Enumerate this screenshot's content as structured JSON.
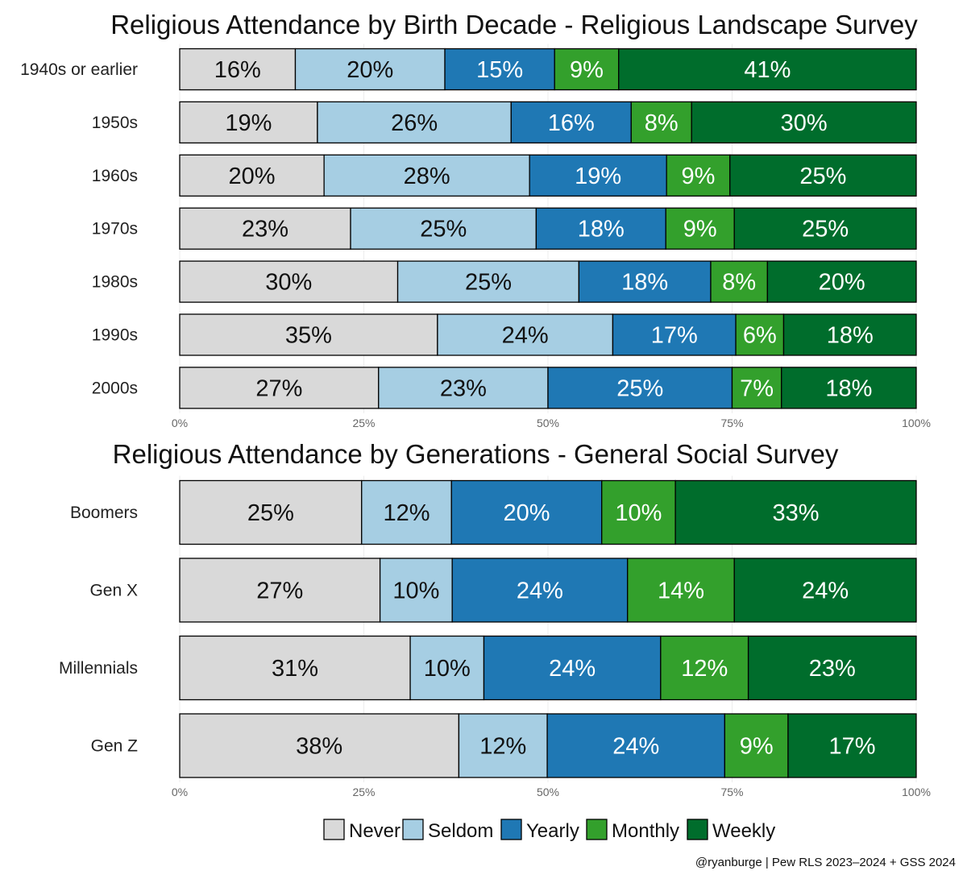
{
  "caption": "@ryanburge | Pew RLS 2023–2024 + GSS 2024",
  "legend": {
    "items": [
      {
        "label": "Never",
        "color": "#d9d9d9"
      },
      {
        "label": "Seldom",
        "color": "#a6cee3"
      },
      {
        "label": "Yearly",
        "color": "#1f78b4"
      },
      {
        "label": "Monthly",
        "color": "#33a02c"
      },
      {
        "label": "Weekly",
        "color": "#006d2c"
      }
    ],
    "placement": "bottom"
  },
  "chart_data": [
    {
      "type": "bar",
      "orientation": "horizontal",
      "stacked": true,
      "title": "Religious Attendance by Birth Decade - Religious Landscape Survey",
      "xlim": [
        0,
        100
      ],
      "xticks": [
        "0%",
        "25%",
        "50%",
        "75%",
        "100%"
      ],
      "categories": [
        "1940s or earlier",
        "1950s",
        "1960s",
        "1970s",
        "1980s",
        "1990s",
        "2000s"
      ],
      "series": [
        {
          "name": "Never",
          "values": [
            16,
            19,
            20,
            23,
            30,
            35,
            27
          ]
        },
        {
          "name": "Seldom",
          "values": [
            20,
            26,
            28,
            25,
            25,
            24,
            23
          ]
        },
        {
          "name": "Yearly",
          "values": [
            15,
            16,
            19,
            18,
            18,
            17,
            25
          ]
        },
        {
          "name": "Monthly",
          "values": [
            9,
            8,
            9,
            9,
            8,
            6,
            7
          ]
        },
        {
          "name": "Weekly",
          "values": [
            41,
            30,
            25,
            25,
            20,
            18,
            18
          ]
        }
      ],
      "segment_widths": [
        [
          15.7,
          20.3,
          14.9,
          8.7,
          40.4
        ],
        [
          18.7,
          26.3,
          16.3,
          8.2,
          30.5
        ],
        [
          19.6,
          27.9,
          18.6,
          8.6,
          25.3
        ],
        [
          23.2,
          25.2,
          17.6,
          9.3,
          24.7
        ],
        [
          29.6,
          24.6,
          17.9,
          7.7,
          20.2
        ],
        [
          35.0,
          23.8,
          16.7,
          6.5,
          18.0
        ],
        [
          27.0,
          23.0,
          25.0,
          6.7,
          18.3
        ]
      ]
    },
    {
      "type": "bar",
      "orientation": "horizontal",
      "stacked": true,
      "title": "Religious Attendance by Generations - General Social Survey",
      "xlim": [
        0,
        100
      ],
      "xticks": [
        "0%",
        "25%",
        "50%",
        "75%",
        "100%"
      ],
      "categories": [
        "Boomers",
        "Gen X",
        "Millennials",
        "Gen Z"
      ],
      "series": [
        {
          "name": "Never",
          "values": [
            25,
            27,
            31,
            38
          ]
        },
        {
          "name": "Seldom",
          "values": [
            12,
            10,
            10,
            12
          ]
        },
        {
          "name": "Yearly",
          "values": [
            20,
            24,
            24,
            24
          ]
        },
        {
          "name": "Monthly",
          "values": [
            10,
            14,
            12,
            9
          ]
        },
        {
          "name": "Weekly",
          "values": [
            33,
            24,
            23,
            17
          ]
        }
      ],
      "segment_widths": [
        [
          24.7,
          12.2,
          20.4,
          10.0,
          32.7
        ],
        [
          27.2,
          9.8,
          23.8,
          14.5,
          24.7
        ],
        [
          31.3,
          10.0,
          24.0,
          11.9,
          22.8
        ],
        [
          37.9,
          12.0,
          24.1,
          8.6,
          17.4
        ]
      ]
    }
  ]
}
